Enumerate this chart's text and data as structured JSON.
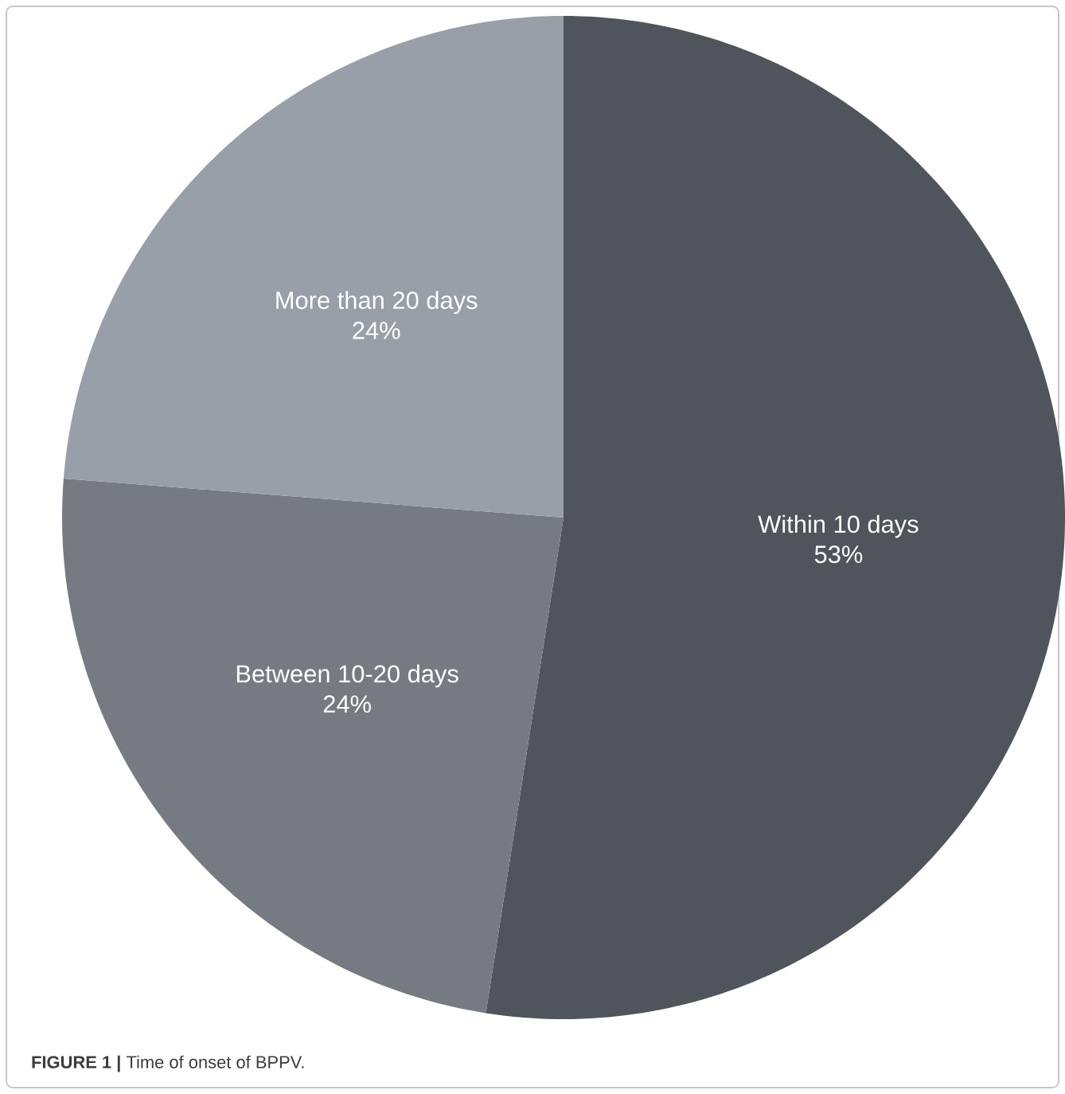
{
  "chart_data": {
    "type": "pie",
    "categories": [
      "Within 10 days",
      "Between 10-20 days",
      "More than 20 days"
    ],
    "values": [
      53,
      24,
      24
    ],
    "value_labels": [
      "53%",
      "24%",
      "24%"
    ],
    "colors": [
      "#50545c",
      "#767b83",
      "#989fa8"
    ],
    "annotations": [
      "**FIGURE 1 |** Time of onset of BPPV."
    ]
  }
}
